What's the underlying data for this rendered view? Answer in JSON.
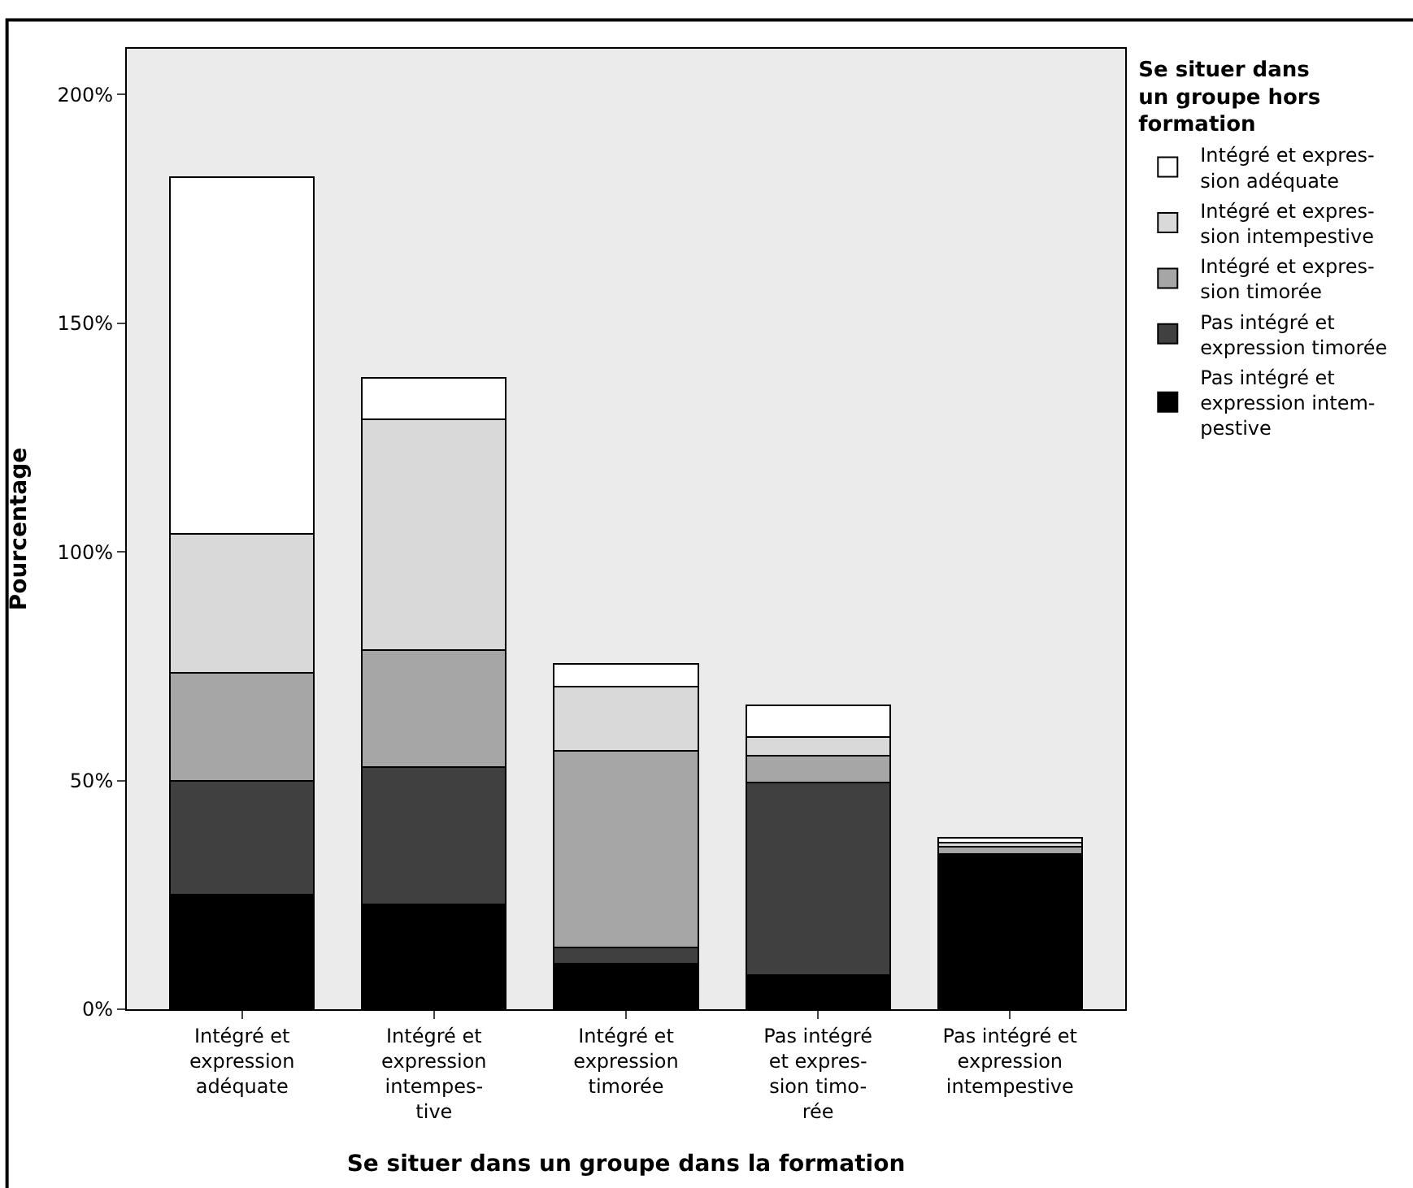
{
  "chart_data": {
    "type": "bar",
    "stacked": true,
    "xlabel": "Se situer dans un groupe dans la formation",
    "ylabel": "Pourcentage",
    "legend_title": "Se situer dans\nun groupe hors\nformation",
    "categories": [
      "Intégré et\nexpression\nadéquate",
      "Intégré et\nexpression\nintempes-\ntive",
      "Intégré et\nexpression\ntimorée",
      "Pas intégré\net expres-\nsion timo-\nrée",
      "Pas intégré et\nexpression\nintempestive"
    ],
    "series": [
      {
        "name": "Pas intégré et\nexpression intem-\npestive",
        "color": "#000000",
        "values": [
          25,
          23,
          10,
          7.5,
          33.5
        ]
      },
      {
        "name": "Pas intégré et\nexpression timorée",
        "color": "#404040",
        "values": [
          25,
          30,
          3.5,
          42,
          0.5
        ]
      },
      {
        "name": "Intégré et expres-\nsion timorée",
        "color": "#a6a6a6",
        "values": [
          23.5,
          25.5,
          43,
          6,
          1.5
        ]
      },
      {
        "name": "Intégré et expres-\nsion intempestive",
        "color": "#d9d9d9",
        "values": [
          30.5,
          50.5,
          14,
          4,
          1
        ]
      },
      {
        "name": "Intégré et expres-\nsion adéquate",
        "color": "#ffffff",
        "values": [
          78,
          9,
          5,
          7,
          1
        ]
      }
    ],
    "ylim": [
      0,
      210
    ],
    "yticks": [
      {
        "value": 0,
        "label": "0%"
      },
      {
        "value": 50,
        "label": "50%"
      },
      {
        "value": 100,
        "label": "100%"
      },
      {
        "value": 150,
        "label": "150%"
      },
      {
        "value": 200,
        "label": "200%"
      }
    ],
    "legend": "top right",
    "grid": false
  }
}
